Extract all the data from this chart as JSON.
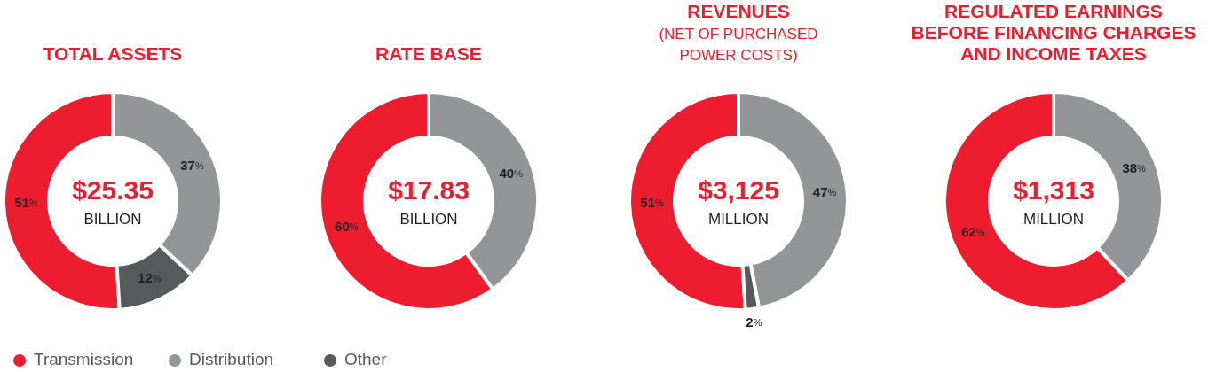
{
  "chart_data": [
    {
      "type": "donut",
      "title": "TOTAL ASSETS",
      "categories": [
        "Transmission",
        "Distribution",
        "Other"
      ],
      "values": [
        51,
        37,
        12
      ],
      "colors": [
        "#ed1c2e",
        "#939598",
        "#58595b"
      ],
      "value_labels": [
        "51%",
        "37%",
        "12%"
      ],
      "annotations": [
        "$25.35",
        "BILLION"
      ],
      "legend": "bottom"
    },
    {
      "type": "donut",
      "title": "RATE BASE",
      "categories": [
        null,
        null
      ],
      "values": [
        60,
        40
      ],
      "colors": [
        "#ed1c2e",
        "#939598"
      ],
      "value_labels": [
        "60%",
        "40%"
      ],
      "annotations": [
        "$17.83",
        "BILLION"
      ]
    },
    {
      "type": "donut",
      "title": "REVENUES",
      "subtitle": "(NET OF PURCHASED POWER COSTS)",
      "categories": [
        null,
        null,
        null
      ],
      "values": [
        51,
        47,
        2
      ],
      "colors": [
        "#ed1c2e",
        "#939598",
        "#58595b"
      ],
      "value_labels": [
        "51%",
        "47%",
        "2%"
      ],
      "annotations": [
        "$3,125",
        "MILLION"
      ]
    },
    {
      "type": "donut",
      "title": "REGULATED EARNINGS BEFORE FINANCING CHARGES AND INCOME TAXES",
      "categories": [
        null,
        null
      ],
      "values": [
        62,
        38
      ],
      "colors": [
        "#ed1c2e",
        "#939598"
      ],
      "value_labels": [
        "62%",
        "38%"
      ],
      "annotations": [
        "$1,313",
        "MILLION"
      ]
    }
  ]
}
